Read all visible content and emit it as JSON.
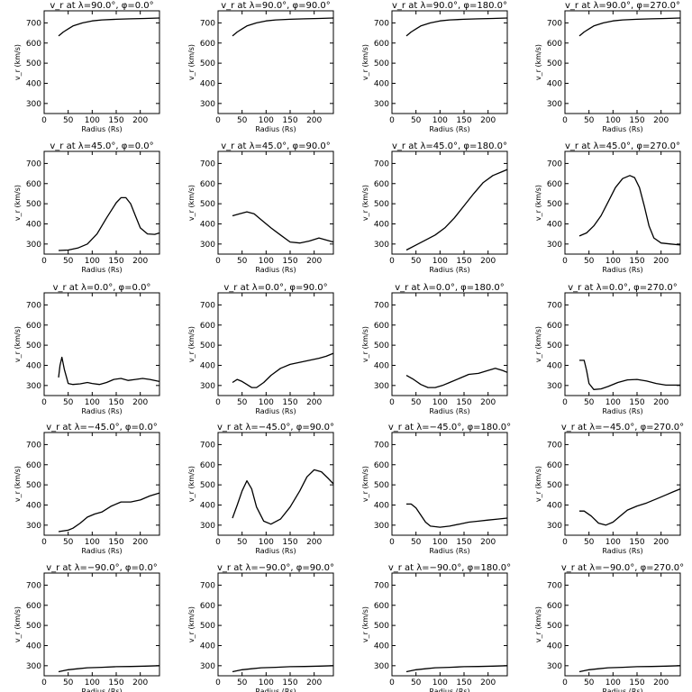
{
  "chart_data": [
    {
      "type": "line",
      "title": "v_r at λ=90.0°, φ=0.0°",
      "xlabel": "Radius (Rs)",
      "ylabel": "v_r (km/s)",
      "xlim": [
        0,
        240
      ],
      "ylim": [
        250,
        760
      ],
      "x": [
        30,
        40,
        50,
        60,
        80,
        100,
        120,
        150,
        180,
        210,
        240
      ],
      "y": [
        635,
        655,
        670,
        685,
        700,
        710,
        715,
        718,
        720,
        722,
        724
      ]
    },
    {
      "type": "line",
      "title": "v_r at λ=90.0°, φ=90.0°",
      "xlabel": "Radius (Rs)",
      "ylabel": "v_r (km/s)",
      "xlim": [
        0,
        240
      ],
      "ylim": [
        250,
        760
      ],
      "x": [
        30,
        40,
        50,
        60,
        80,
        100,
        120,
        150,
        180,
        210,
        240
      ],
      "y": [
        635,
        655,
        670,
        685,
        700,
        710,
        715,
        718,
        720,
        722,
        724
      ]
    },
    {
      "type": "line",
      "title": "v_r at λ=90.0°, φ=180.0°",
      "xlabel": "Radius (Rs)",
      "ylabel": "v_r (km/s)",
      "xlim": [
        0,
        240
      ],
      "ylim": [
        250,
        760
      ],
      "x": [
        30,
        40,
        50,
        60,
        80,
        100,
        120,
        150,
        180,
        210,
        240
      ],
      "y": [
        635,
        655,
        670,
        685,
        700,
        710,
        715,
        718,
        720,
        722,
        724
      ]
    },
    {
      "type": "line",
      "title": "v_r at λ=90.0°, φ=270.0°",
      "xlabel": "Radius (Rs)",
      "ylabel": "v_r (km/s)",
      "xlim": [
        0,
        240
      ],
      "ylim": [
        250,
        760
      ],
      "x": [
        30,
        40,
        50,
        60,
        80,
        100,
        120,
        150,
        180,
        210,
        240
      ],
      "y": [
        635,
        655,
        670,
        685,
        700,
        710,
        715,
        718,
        720,
        722,
        724
      ]
    },
    {
      "type": "line",
      "title": "v_r at λ=45.0°, φ=0.0°",
      "xlabel": "Radius (Rs)",
      "ylabel": "v_r (km/s)",
      "xlim": [
        0,
        240
      ],
      "ylim": [
        250,
        760
      ],
      "x": [
        30,
        50,
        70,
        90,
        110,
        130,
        150,
        160,
        170,
        180,
        190,
        200,
        215,
        230,
        240
      ],
      "y": [
        268,
        270,
        280,
        300,
        350,
        430,
        505,
        530,
        530,
        500,
        440,
        380,
        350,
        348,
        355
      ]
    },
    {
      "type": "line",
      "title": "v_r at λ=45.0°, φ=90.0°",
      "xlabel": "Radius (Rs)",
      "ylabel": "v_r (km/s)",
      "xlim": [
        0,
        240
      ],
      "ylim": [
        250,
        760
      ],
      "x": [
        30,
        45,
        60,
        75,
        90,
        110,
        130,
        150,
        170,
        190,
        210,
        225,
        240
      ],
      "y": [
        440,
        450,
        460,
        450,
        420,
        380,
        345,
        310,
        305,
        315,
        330,
        320,
        310
      ]
    },
    {
      "type": "line",
      "title": "v_r at λ=45.0°, φ=180.0°",
      "xlabel": "Radius (Rs)",
      "ylabel": "v_r (km/s)",
      "xlim": [
        0,
        240
      ],
      "ylim": [
        250,
        760
      ],
      "x": [
        30,
        50,
        70,
        90,
        110,
        130,
        150,
        170,
        190,
        210,
        230,
        240
      ],
      "y": [
        270,
        295,
        320,
        345,
        380,
        430,
        490,
        550,
        605,
        640,
        660,
        670
      ]
    },
    {
      "type": "line",
      "title": "v_r at λ=45.0°, φ=270.0°",
      "xlabel": "Radius (Rs)",
      "ylabel": "v_r (km/s)",
      "xlim": [
        0,
        240
      ],
      "ylim": [
        250,
        760
      ],
      "x": [
        30,
        45,
        60,
        75,
        90,
        105,
        120,
        135,
        145,
        155,
        165,
        175,
        185,
        200,
        220,
        240
      ],
      "y": [
        340,
        355,
        390,
        440,
        510,
        580,
        625,
        640,
        630,
        580,
        490,
        390,
        330,
        305,
        300,
        295
      ]
    },
    {
      "type": "line",
      "title": "v_r at λ=0.0°, φ=0.0°",
      "xlabel": "Radius (Rs)",
      "ylabel": "v_r (km/s)",
      "xlim": [
        0,
        240
      ],
      "ylim": [
        250,
        760
      ],
      "x": [
        30,
        33,
        37,
        42,
        50,
        60,
        75,
        90,
        100,
        115,
        130,
        145,
        160,
        175,
        190,
        205,
        220,
        240
      ],
      "y": [
        340,
        400,
        440,
        380,
        310,
        305,
        308,
        315,
        310,
        305,
        315,
        330,
        335,
        325,
        330,
        335,
        330,
        320
      ]
    },
    {
      "type": "line",
      "title": "v_r at λ=0.0°, φ=90.0°",
      "xlabel": "Radius (Rs)",
      "ylabel": "v_r (km/s)",
      "xlim": [
        0,
        240
      ],
      "ylim": [
        250,
        760
      ],
      "x": [
        30,
        40,
        50,
        60,
        70,
        80,
        95,
        110,
        130,
        150,
        170,
        190,
        210,
        225,
        240
      ],
      "y": [
        315,
        330,
        320,
        305,
        290,
        290,
        315,
        350,
        385,
        405,
        415,
        425,
        435,
        445,
        460
      ]
    },
    {
      "type": "line",
      "title": "v_r at λ=0.0°, φ=180.0°",
      "xlabel": "Radius (Rs)",
      "ylabel": "v_r (km/s)",
      "xlim": [
        0,
        240
      ],
      "ylim": [
        250,
        760
      ],
      "x": [
        30,
        45,
        60,
        75,
        90,
        105,
        120,
        140,
        160,
        180,
        200,
        215,
        230,
        240
      ],
      "y": [
        350,
        330,
        305,
        290,
        290,
        300,
        315,
        335,
        355,
        360,
        375,
        385,
        375,
        365
      ]
    },
    {
      "type": "line",
      "title": "v_r at λ=0.0°, φ=270.0°",
      "xlabel": "Radius (Rs)",
      "ylabel": "v_r (km/s)",
      "xlim": [
        0,
        240
      ],
      "ylim": [
        250,
        760
      ],
      "x": [
        30,
        40,
        45,
        50,
        60,
        75,
        90,
        110,
        130,
        150,
        170,
        190,
        210,
        240
      ],
      "y": [
        425,
        425,
        375,
        310,
        280,
        283,
        295,
        315,
        328,
        330,
        322,
        310,
        302,
        302
      ]
    },
    {
      "type": "line",
      "title": "v_r at λ=−45.0°, φ=0.0°",
      "xlabel": "Radius (Rs)",
      "ylabel": "v_r (km/s)",
      "xlim": [
        0,
        240
      ],
      "ylim": [
        250,
        760
      ],
      "x": [
        30,
        50,
        60,
        75,
        90,
        105,
        120,
        140,
        160,
        180,
        200,
        220,
        240
      ],
      "y": [
        268,
        275,
        285,
        310,
        340,
        355,
        365,
        395,
        415,
        415,
        425,
        445,
        460
      ]
    },
    {
      "type": "line",
      "title": "v_r at λ=−45.0°, φ=90.0°",
      "xlabel": "Radius (Rs)",
      "ylabel": "v_r (km/s)",
      "xlim": [
        0,
        240
      ],
      "ylim": [
        250,
        760
      ],
      "x": [
        30,
        40,
        50,
        60,
        70,
        80,
        95,
        110,
        130,
        150,
        170,
        185,
        200,
        215,
        230,
        240
      ],
      "y": [
        335,
        400,
        470,
        520,
        480,
        390,
        320,
        305,
        330,
        390,
        470,
        540,
        575,
        565,
        530,
        505
      ]
    },
    {
      "type": "line",
      "title": "v_r at λ=−45.0°, φ=180.0°",
      "xlabel": "Radius (Rs)",
      "ylabel": "v_r (km/s)",
      "xlim": [
        0,
        240
      ],
      "ylim": [
        250,
        760
      ],
      "x": [
        30,
        40,
        50,
        60,
        70,
        80,
        100,
        120,
        140,
        160,
        180,
        200,
        220,
        240
      ],
      "y": [
        405,
        405,
        385,
        350,
        315,
        295,
        290,
        295,
        305,
        315,
        320,
        325,
        330,
        335
      ]
    },
    {
      "type": "line",
      "title": "v_r at λ=−45.0°, φ=270.0°",
      "xlabel": "Radius (Rs)",
      "ylabel": "v_r (km/s)",
      "xlim": [
        0,
        240
      ],
      "ylim": [
        250,
        760
      ],
      "x": [
        30,
        40,
        55,
        70,
        85,
        100,
        115,
        130,
        150,
        170,
        190,
        210,
        225,
        240
      ],
      "y": [
        370,
        370,
        345,
        310,
        300,
        315,
        345,
        375,
        395,
        410,
        430,
        450,
        465,
        480
      ]
    },
    {
      "type": "line",
      "title": "v_r at λ=−90.0°, φ=0.0°",
      "xlabel": "Radius (Rs)",
      "ylabel": "v_r (km/s)",
      "xlim": [
        0,
        240
      ],
      "ylim": [
        250,
        760
      ],
      "x": [
        30,
        50,
        70,
        90,
        120,
        150,
        180,
        210,
        240
      ],
      "y": [
        270,
        280,
        285,
        290,
        292,
        295,
        296,
        298,
        300
      ]
    },
    {
      "type": "line",
      "title": "v_r at λ=−90.0°, φ=90.0°",
      "xlabel": "Radius (Rs)",
      "ylabel": "v_r (km/s)",
      "xlim": [
        0,
        240
      ],
      "ylim": [
        250,
        760
      ],
      "x": [
        30,
        50,
        70,
        90,
        120,
        150,
        180,
        210,
        240
      ],
      "y": [
        270,
        280,
        285,
        290,
        292,
        295,
        296,
        298,
        300
      ]
    },
    {
      "type": "line",
      "title": "v_r at λ=−90.0°, φ=180.0°",
      "xlabel": "Radius (Rs)",
      "ylabel": "v_r (km/s)",
      "xlim": [
        0,
        240
      ],
      "ylim": [
        250,
        760
      ],
      "x": [
        30,
        50,
        70,
        90,
        120,
        150,
        180,
        210,
        240
      ],
      "y": [
        270,
        280,
        285,
        290,
        292,
        295,
        296,
        298,
        300
      ]
    },
    {
      "type": "line",
      "title": "v_r at λ=−90.0°, φ=270.0°",
      "xlabel": "Radius (Rs)",
      "ylabel": "v_r (km/s)",
      "xlim": [
        0,
        240
      ],
      "ylim": [
        250,
        760
      ],
      "x": [
        30,
        50,
        70,
        90,
        120,
        150,
        180,
        210,
        240
      ],
      "y": [
        270,
        280,
        285,
        290,
        292,
        295,
        296,
        298,
        300
      ]
    }
  ],
  "axes": {
    "xticks": [
      0,
      50,
      100,
      150,
      200
    ],
    "yticks": [
      300,
      400,
      500,
      600,
      700
    ]
  },
  "colors": {
    "line": "#000000",
    "background": "#ffffff"
  }
}
